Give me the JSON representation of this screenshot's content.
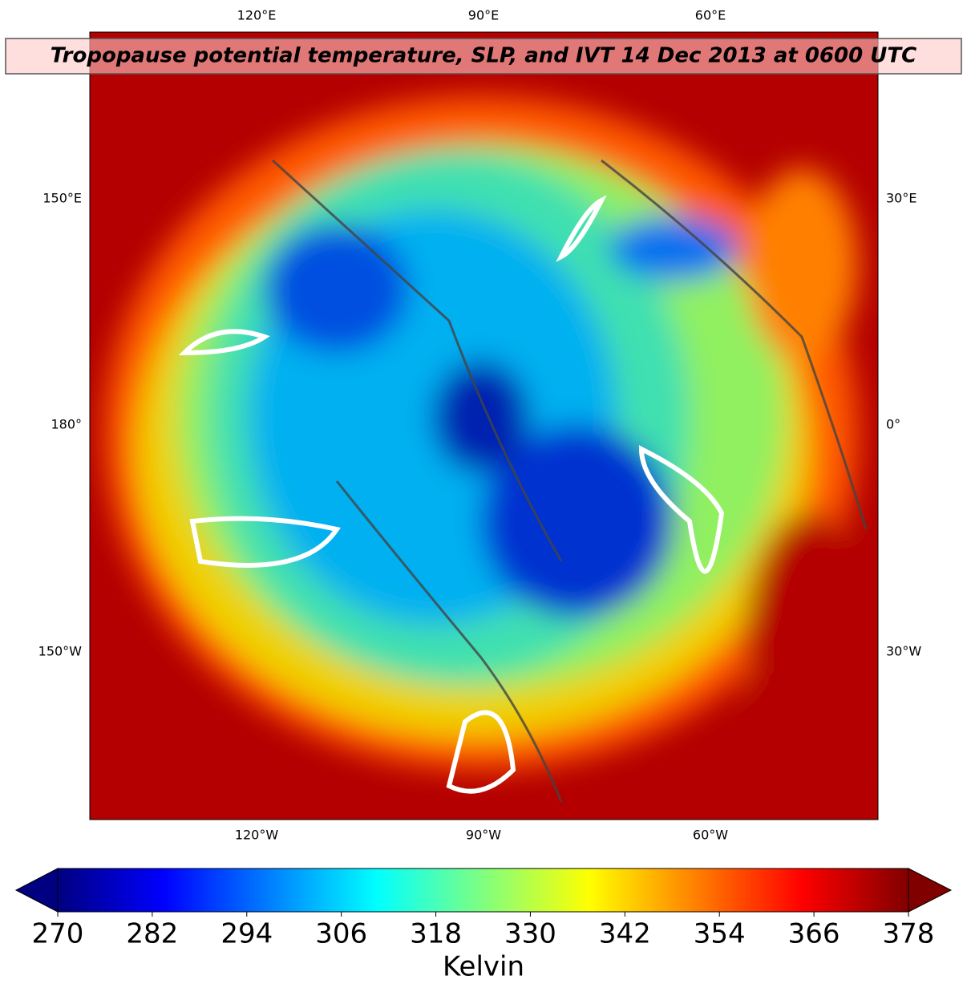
{
  "title": "Tropopause potential temperature, SLP, and IVT 14 Dec 2013 at 0600 UTC",
  "map": {
    "top_labels": [
      "120°E",
      "90°E",
      "60°E"
    ],
    "bottom_labels": [
      "120°W",
      "90°W",
      "60°W"
    ],
    "left_labels": [
      "150°E",
      "180°",
      "150°W"
    ],
    "right_labels": [
      "30°E",
      "0°",
      "30°W"
    ]
  },
  "colorbar": {
    "lim": [
      270,
      378
    ],
    "ticks": [
      270,
      282,
      294,
      306,
      318,
      330,
      342,
      354,
      366,
      378
    ],
    "extend": "both",
    "colormap": "jet",
    "label": "Kelvin"
  }
}
